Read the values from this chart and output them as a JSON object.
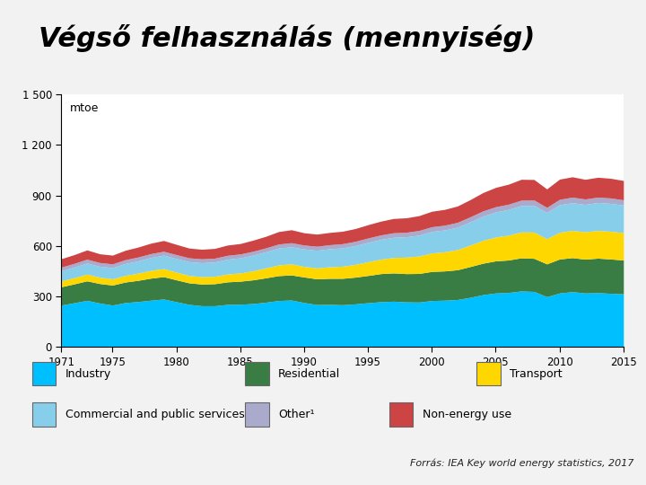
{
  "title": "Végső felhasználás (mennyiség)",
  "ylabel": "mtoe",
  "source": "Forrás: IEA Key world energy statistics, 2017",
  "years": [
    1971,
    1972,
    1973,
    1974,
    1975,
    1976,
    1977,
    1978,
    1979,
    1980,
    1981,
    1982,
    1983,
    1984,
    1985,
    1986,
    1987,
    1988,
    1989,
    1990,
    1991,
    1992,
    1993,
    1994,
    1995,
    1996,
    1997,
    1998,
    1999,
    2000,
    2001,
    2002,
    2003,
    2004,
    2005,
    2006,
    2007,
    2008,
    2009,
    2010,
    2011,
    2012,
    2013,
    2014,
    2015
  ],
  "industry": [
    248,
    262,
    276,
    260,
    248,
    263,
    269,
    277,
    284,
    268,
    252,
    244,
    244,
    252,
    253,
    257,
    265,
    275,
    278,
    263,
    251,
    252,
    250,
    255,
    262,
    268,
    271,
    267,
    266,
    275,
    277,
    281,
    294,
    310,
    320,
    323,
    332,
    329,
    298,
    320,
    328,
    320,
    322,
    318,
    315
  ],
  "residential": [
    109,
    112,
    116,
    116,
    119,
    122,
    126,
    131,
    133,
    130,
    128,
    129,
    131,
    134,
    137,
    141,
    145,
    148,
    149,
    152,
    153,
    155,
    157,
    159,
    162,
    167,
    168,
    168,
    170,
    173,
    174,
    177,
    183,
    187,
    191,
    193,
    197,
    197,
    195,
    202,
    202,
    201,
    205,
    204,
    201
  ],
  "transport": [
    35,
    37,
    40,
    38,
    37,
    40,
    43,
    46,
    48,
    46,
    44,
    44,
    44,
    47,
    49,
    54,
    59,
    64,
    66,
    63,
    65,
    69,
    72,
    76,
    82,
    86,
    92,
    98,
    104,
    110,
    114,
    120,
    128,
    136,
    142,
    148,
    154,
    156,
    150,
    159,
    162,
    163,
    165,
    165,
    163
  ],
  "commercial": [
    60,
    63,
    66,
    65,
    67,
    70,
    73,
    77,
    80,
    81,
    82,
    83,
    85,
    88,
    90,
    93,
    96,
    100,
    102,
    104,
    105,
    107,
    109,
    112,
    115,
    118,
    120,
    121,
    124,
    128,
    130,
    133,
    138,
    144,
    149,
    153,
    157,
    159,
    156,
    164,
    165,
    163,
    166,
    166,
    164
  ],
  "other": [
    22,
    22,
    23,
    22,
    22,
    23,
    23,
    23,
    23,
    23,
    23,
    23,
    23,
    23,
    23,
    23,
    23,
    24,
    24,
    23,
    24,
    24,
    25,
    25,
    26,
    26,
    27,
    27,
    28,
    28,
    28,
    29,
    30,
    31,
    31,
    31,
    32,
    32,
    30,
    32,
    33,
    32,
    32,
    32,
    31
  ],
  "nonenergy": [
    50,
    52,
    55,
    52,
    52,
    56,
    59,
    62,
    64,
    61,
    58,
    57,
    58,
    61,
    62,
    66,
    69,
    74,
    77,
    73,
    72,
    73,
    74,
    76,
    79,
    82,
    85,
    86,
    88,
    92,
    94,
    97,
    102,
    109,
    115,
    119,
    124,
    122,
    110,
    120,
    121,
    117,
    118,
    117,
    115
  ],
  "colors": {
    "industry": "#00BFFF",
    "residential": "#3A7D44",
    "transport": "#FFD700",
    "commercial": "#87CEEB",
    "other": "#AAAACC",
    "nonenergy": "#CC4444"
  },
  "ylim": [
    0,
    1500
  ],
  "yticks": [
    0,
    300,
    600,
    900,
    1200,
    1500
  ],
  "xticks": [
    1971,
    1975,
    1980,
    1985,
    1990,
    1995,
    2000,
    2005,
    2010,
    2015
  ],
  "bg_color": "#FFFFFF",
  "fig_bg": "#F2F2F2",
  "title_fontsize": 22,
  "sidebar_colors": [
    "#1B3A6B",
    "#8B1A1A",
    "#2E5C2E",
    "#5B2182",
    "#CC6600",
    "#888888"
  ]
}
